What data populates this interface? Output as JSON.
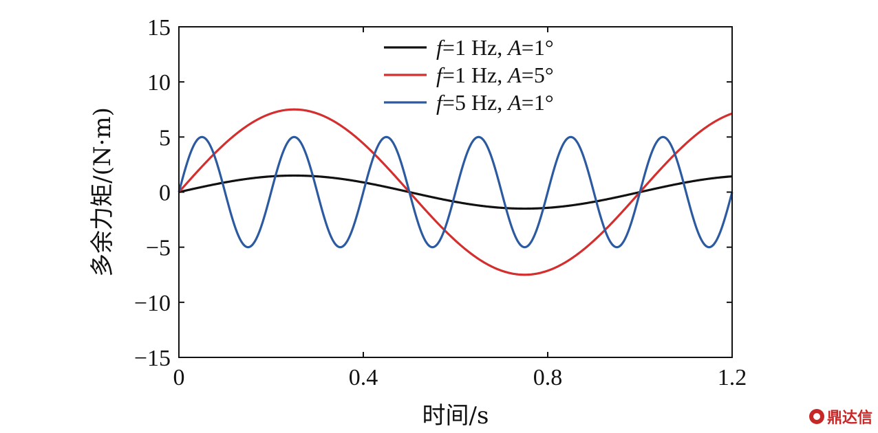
{
  "chart_data": {
    "type": "line",
    "xlabel": "时间/s",
    "ylabel": "多余力矩/(N·m)",
    "xlim": [
      0,
      1.2
    ],
    "ylim": [
      -15,
      15
    ],
    "xticks": [
      0,
      0.4,
      0.8,
      1.2
    ],
    "xtick_labels": [
      "0",
      "0.4",
      "0.8",
      "1.2"
    ],
    "yticks": [
      15,
      10,
      5,
      0,
      -5,
      -10,
      -15
    ],
    "ytick_labels": [
      "15",
      "10",
      "5",
      "0",
      "−5",
      "−10",
      "−15"
    ],
    "grid": false,
    "legend_position": "top-right",
    "series": [
      {
        "name": "f=1 Hz, A=1°",
        "legend_f": "f",
        "legend_mid": "=1 Hz, ",
        "legend_a": "A",
        "legend_end": "=1°",
        "color": "#111111",
        "frequency_hz": 1,
        "amplitude": 1.5,
        "x": [
          0,
          0.1,
          0.2,
          0.25,
          0.3,
          0.4,
          0.5,
          0.6,
          0.7,
          0.75,
          0.8,
          0.9,
          1.0,
          1.1,
          1.2
        ],
        "y": [
          0,
          0.88,
          1.43,
          1.5,
          1.43,
          0.88,
          0,
          -0.88,
          -1.43,
          -1.5,
          -1.43,
          -0.88,
          0,
          0.88,
          1.43
        ]
      },
      {
        "name": "f=1 Hz, A=5°",
        "legend_f": "f",
        "legend_mid": "=1 Hz, ",
        "legend_a": "A",
        "legend_end": "=5°",
        "color": "#d32f2f",
        "frequency_hz": 1,
        "amplitude": 7.5,
        "x": [
          0,
          0.1,
          0.2,
          0.25,
          0.3,
          0.4,
          0.5,
          0.6,
          0.7,
          0.75,
          0.8,
          0.9,
          1.0,
          1.1,
          1.2
        ],
        "y": [
          0,
          4.41,
          7.13,
          7.5,
          7.13,
          4.41,
          0,
          -4.41,
          -7.13,
          -7.5,
          -7.13,
          -4.41,
          0,
          4.41,
          7.13
        ]
      },
      {
        "name": "f=5 Hz, A=1°",
        "legend_f": "f",
        "legend_mid": "=5 Hz, ",
        "legend_a": "A",
        "legend_end": "=1°",
        "color": "#2c5aa0",
        "frequency_hz": 5,
        "amplitude": 5,
        "x": [
          0,
          0.05,
          0.1,
          0.15,
          0.2,
          0.25,
          0.3,
          0.35,
          0.4,
          0.45,
          0.5,
          0.55,
          0.6,
          0.65,
          0.7,
          0.75,
          0.8,
          0.85,
          0.9,
          0.95,
          1.0,
          1.05,
          1.1,
          1.15,
          1.2
        ],
        "y": [
          0,
          5,
          0,
          -5,
          0,
          5,
          0,
          -5,
          0,
          5,
          0,
          -5,
          0,
          5,
          0,
          -5,
          0,
          5,
          0,
          -5,
          0,
          5,
          0,
          -5,
          0
        ]
      }
    ]
  },
  "watermark": {
    "text": "鼎达信",
    "color": "#c62828"
  }
}
